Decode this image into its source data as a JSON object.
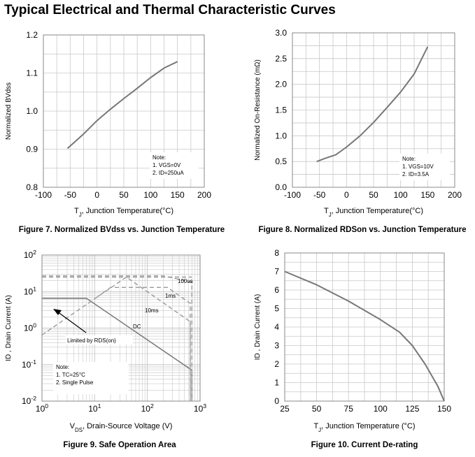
{
  "page": {
    "title": "Typical Electrical and Thermal Characteristic Curves"
  },
  "chart_data": [
    {
      "type": "line",
      "caption": "Figure 7. Normalized BVdss vs. Junction Temperature",
      "xlabel_main": "T",
      "xlabel_sub": "J",
      "xlabel_rest": ", Junction Temperature(°C)",
      "ylabel": "Normalized BVdss",
      "xlim": [
        -100,
        200
      ],
      "ylim": [
        0.8,
        1.2
      ],
      "xticks": [
        "-100",
        "-50",
        "0",
        "50",
        "100",
        "150",
        "200"
      ],
      "yticks": [
        "0.8",
        "0.9",
        "1.0",
        "1.1",
        "1.2"
      ],
      "grid": true,
      "note": [
        "Note:",
        "1. VGS=0V",
        "2. ID=250uA"
      ],
      "series": [
        {
          "x": [
            -55,
            -25,
            0,
            25,
            50,
            75,
            100,
            125,
            150
          ],
          "y": [
            0.902,
            0.94,
            0.975,
            1.005,
            1.033,
            1.06,
            1.088,
            1.113,
            1.13
          ]
        }
      ]
    },
    {
      "type": "line",
      "caption": "Figure 8. Normalized RDSon vs. Junction Temperature",
      "xlabel_main": "T",
      "xlabel_sub": "J",
      "xlabel_rest": ", Junction Temperature(°C)",
      "ylabel": "Normalized On-Resistance (mΩ)",
      "xlim": [
        -100,
        200
      ],
      "ylim": [
        0.0,
        3.0
      ],
      "xticks": [
        "-100",
        "-50",
        "0",
        "50",
        "100",
        "150",
        "200"
      ],
      "yticks": [
        "0.0",
        "0.5",
        "1.0",
        "1.5",
        "2.0",
        "2.5",
        "3.0"
      ],
      "grid": true,
      "note": [
        "Note:",
        "1. VGS=10V",
        "2. ID=3.5A"
      ],
      "series": [
        {
          "x": [
            -55,
            -40,
            -20,
            0,
            25,
            50,
            75,
            100,
            125,
            150
          ],
          "y": [
            0.5,
            0.56,
            0.63,
            0.78,
            1.0,
            1.26,
            1.55,
            1.85,
            2.2,
            2.73
          ]
        }
      ]
    },
    {
      "type": "line",
      "caption": "Figure 9. Safe Operation Area",
      "xlabel_main": "V",
      "xlabel_sub": "DS",
      "xlabel_rest": ", Drain-Source Voltage (V)",
      "ylabel": "ID , Drain Current (A)",
      "xscale": "log",
      "yscale": "log",
      "xlim": [
        1,
        1000
      ],
      "ylim": [
        0.01,
        100
      ],
      "xticks": [
        "10",
        "10",
        "10",
        "10"
      ],
      "xtick_exp": [
        "0",
        "1",
        "2",
        "3"
      ],
      "yticks": [
        "10",
        "10",
        "10",
        "10",
        "10"
      ],
      "ytick_exp": [
        "-2",
        "-1",
        "0",
        "1",
        "2"
      ],
      "grid": true,
      "note": [
        "Note:",
        "1. TC=25°C",
        "2. Single Pulse"
      ],
      "annotation": "Limited by RDS(on)",
      "series": [
        {
          "name": "DC",
          "style": "solid",
          "x": [
            1,
            7,
            700,
            700
          ],
          "y": [
            6.5,
            6.5,
            0.07,
            0.01
          ]
        },
        {
          "name": "10ms",
          "style": "dashed",
          "x": [
            1,
            40,
            650,
            650
          ],
          "y": [
            0.65,
            25,
            1.5,
            0.01
          ]
        },
        {
          "name": "1ms",
          "style": "dashed",
          "x": [
            11,
            20,
            240,
            650,
            650
          ],
          "y": [
            7,
            13,
            13,
            4.8,
            0.01
          ]
        },
        {
          "name": "100us",
          "style": "dashed",
          "x": [
            1,
            200,
            700,
            700
          ],
          "y": [
            27,
            27,
            18,
            0.01
          ]
        },
        {
          "name": "",
          "style": "dashed",
          "x": [
            1,
            700
          ],
          "y": [
            25,
            25
          ]
        }
      ]
    },
    {
      "type": "line",
      "caption": "Figure 10. Current De-rating",
      "xlabel_main": "T",
      "xlabel_sub": "J",
      "xlabel_rest": ", Junction Temperature (°C)",
      "ylabel": "ID , Drain Current (A)",
      "xlim": [
        25,
        150
      ],
      "ylim": [
        0,
        8
      ],
      "xticks": [
        "25",
        "50",
        "75",
        "100",
        "125",
        "150"
      ],
      "yticks": [
        "0",
        "1",
        "2",
        "3",
        "4",
        "5",
        "6",
        "7",
        "8"
      ],
      "grid": true,
      "series": [
        {
          "x": [
            25,
            50,
            75,
            100,
            115,
            125,
            135,
            145,
            150
          ],
          "y": [
            7.0,
            6.28,
            5.4,
            4.4,
            3.72,
            3.0,
            2.0,
            0.8,
            0.0
          ]
        }
      ]
    }
  ]
}
